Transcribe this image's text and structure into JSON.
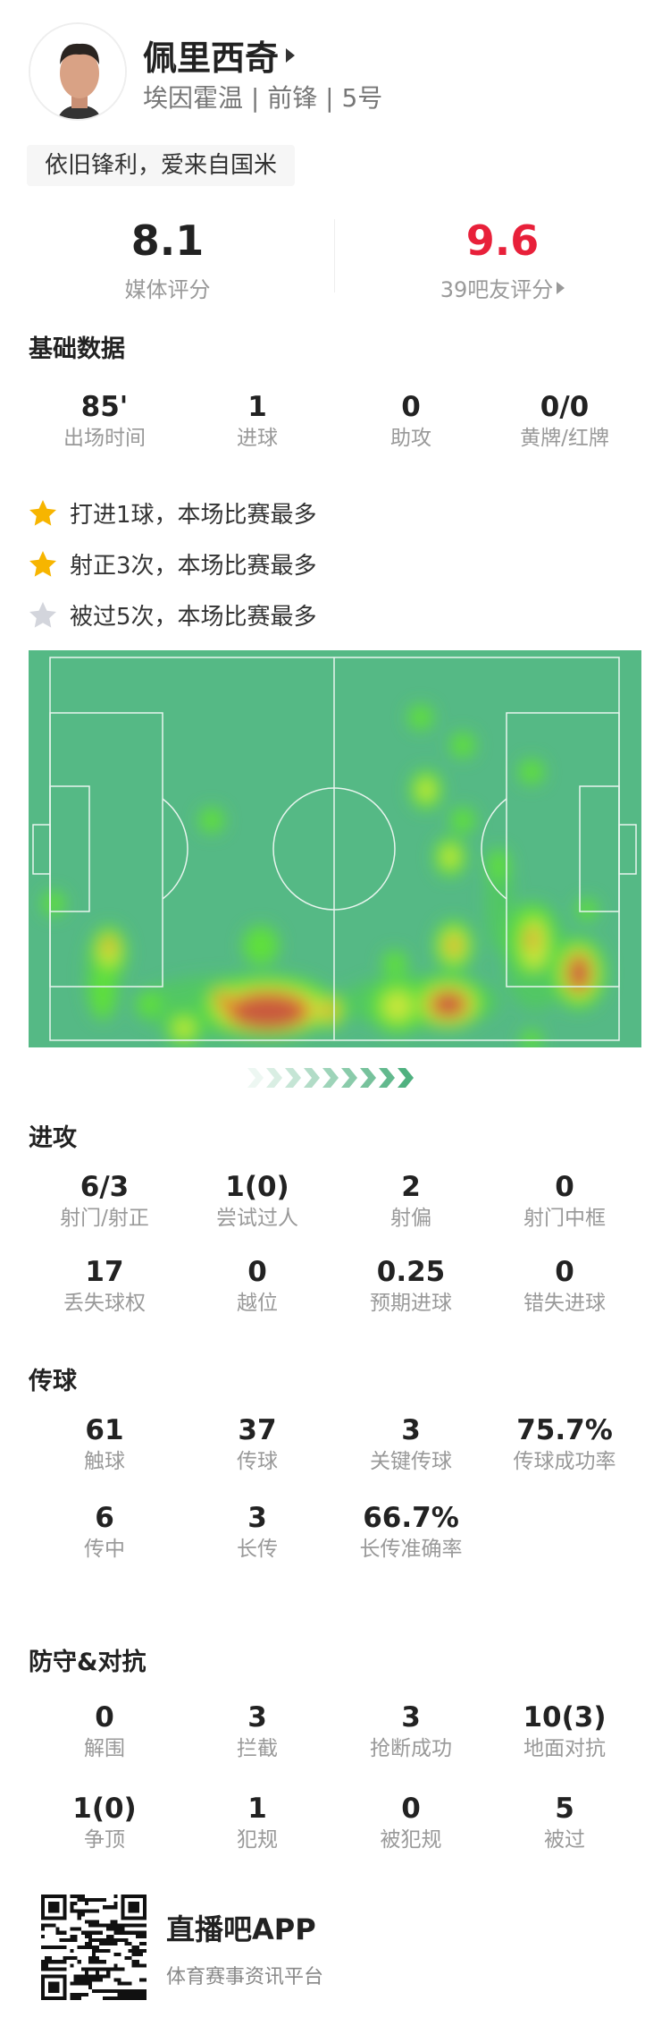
{
  "player": {
    "name": "佩里西奇",
    "subtitle": "埃因霍温 | 前锋 | 5号",
    "tagline": "依旧锋利，爱来自国米"
  },
  "ratings": {
    "media": {
      "value": "8.1",
      "label": "媒体评分"
    },
    "fans": {
      "value": "9.6",
      "label": "39吧友评分",
      "color": "#e8203a"
    }
  },
  "basic": {
    "title": "基础数据",
    "stats": [
      {
        "value": "85'",
        "label": "出场时间"
      },
      {
        "value": "1",
        "label": "进球"
      },
      {
        "value": "0",
        "label": "助攻"
      },
      {
        "value": "0/0",
        "label": "黄牌/红牌"
      }
    ]
  },
  "highlights": [
    {
      "text": "打进1球，本场比赛最多",
      "icon": "star-gold"
    },
    {
      "text": "射正3次，本场比赛最多",
      "icon": "star-gold"
    },
    {
      "text": "被过5次，本场比赛最多",
      "icon": "star-silver"
    }
  ],
  "heatmap": {
    "pitch_color": "#55b985",
    "line_color": "#e8f5ee"
  },
  "attack": {
    "title": "进攻",
    "stats": [
      {
        "value": "6/3",
        "label": "射门/射正"
      },
      {
        "value": "1(0)",
        "label": "尝试过人"
      },
      {
        "value": "2",
        "label": "射偏"
      },
      {
        "value": "0",
        "label": "射门中框"
      },
      {
        "value": "17",
        "label": "丢失球权"
      },
      {
        "value": "0",
        "label": "越位"
      },
      {
        "value": "0.25",
        "label": "预期进球"
      },
      {
        "value": "0",
        "label": "错失进球"
      }
    ]
  },
  "passing": {
    "title": "传球",
    "stats": [
      {
        "value": "61",
        "label": "触球"
      },
      {
        "value": "37",
        "label": "传球"
      },
      {
        "value": "3",
        "label": "关键传球"
      },
      {
        "value": "75.7%",
        "label": "传球成功率"
      },
      {
        "value": "6",
        "label": "传中"
      },
      {
        "value": "3",
        "label": "长传"
      },
      {
        "value": "66.7%",
        "label": "长传准确率"
      }
    ]
  },
  "defense": {
    "title": "防守&对抗",
    "stats": [
      {
        "value": "0",
        "label": "解围"
      },
      {
        "value": "3",
        "label": "拦截"
      },
      {
        "value": "3",
        "label": "抢断成功"
      },
      {
        "value": "10(3)",
        "label": "地面对抗"
      },
      {
        "value": "1(0)",
        "label": "争顶"
      },
      {
        "value": "1",
        "label": "犯规"
      },
      {
        "value": "0",
        "label": "被犯规"
      },
      {
        "value": "5",
        "label": "被过"
      }
    ]
  },
  "footer": {
    "app_name": "直播吧APP",
    "app_desc": "体育赛事资讯平台"
  }
}
